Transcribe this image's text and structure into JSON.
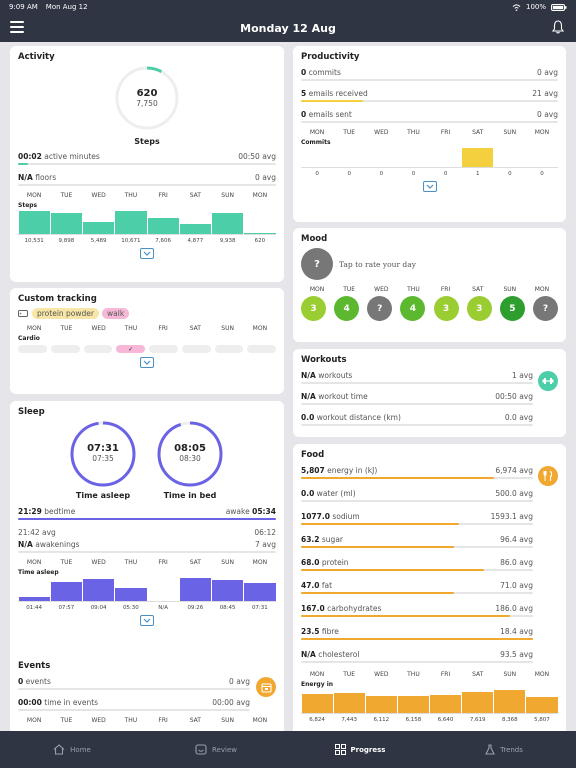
{
  "status": {
    "time": "9:09 AM",
    "date": "Mon Aug 12",
    "battery": "100%"
  },
  "header": {
    "title": "Monday 12 Aug"
  },
  "days": [
    "MON",
    "TUE",
    "WED",
    "THU",
    "FRI",
    "SAT",
    "SUN",
    "MON"
  ],
  "days7": [
    "MON",
    "TUE",
    "WED",
    "THU",
    "FRI",
    "SAT",
    "SUN",
    "MON"
  ],
  "activity": {
    "title": "Activity",
    "steps_value": "620",
    "steps_goal": "7,750",
    "steps_progress": 0.08,
    "steps_label": "Steps",
    "active_value": "00:02",
    "active_label": "active minutes",
    "active_avg": "00:50 avg",
    "floors_value": "N/A",
    "floors_label": "floors",
    "floors_avg": "0 avg",
    "chart_label": "Steps",
    "chart_color": "#4ccfa8",
    "values": [
      10531,
      9898,
      5489,
      10671,
      7606,
      4877,
      9938,
      620
    ],
    "value_labels": [
      "10,531",
      "9,898",
      "5,489",
      "10,671",
      "7,606",
      "4,877",
      "9,938",
      "620"
    ]
  },
  "custom": {
    "title": "Custom tracking",
    "tag1": "protein powder",
    "tag2": "walk",
    "chart_label": "Cardio",
    "cells": [
      0,
      0,
      0,
      1,
      0,
      0,
      0,
      0
    ]
  },
  "sleep": {
    "title": "Sleep",
    "asleep_value": "07:31",
    "asleep_avg": "07:35",
    "asleep_label": "Time asleep",
    "bed_value": "08:05",
    "bed_avg": "08:30",
    "bed_label": "Time in bed",
    "bedtime_value": "21:29",
    "bedtime_label": "bedtime",
    "awake_label": "awake",
    "awake_value": "05:34",
    "bedtime_avg": "21:42 avg",
    "awake_avg": "06:12",
    "awakenings_value": "N/A",
    "awakenings_label": "awakenings",
    "awakenings_avg": "7 avg",
    "chart_label": "Time asleep",
    "chart_color": "#6a63e6",
    "values": [
      104,
      477,
      544,
      330,
      0,
      566,
      525,
      451
    ],
    "value_labels": [
      "01:44",
      "07:57",
      "09:04",
      "05:30",
      "N/A",
      "09:26",
      "08:45",
      "07:31"
    ]
  },
  "events": {
    "title": "Events",
    "events_value": "0",
    "events_label": "events",
    "events_avg": "0 avg",
    "time_value": "00:00",
    "time_label": "time in events",
    "time_avg": "00:00 avg",
    "btn_color": "#f0a830"
  },
  "productivity": {
    "title": "Productivity",
    "commits_value": "0",
    "commits_label": "commits",
    "commits_avg": "0 avg",
    "emails_recv_value": "5",
    "emails_recv_label": "emails received",
    "emails_recv_avg": "21 avg",
    "emails_sent_value": "0",
    "emails_sent_label": "emails sent",
    "emails_sent_avg": "0 avg",
    "chart_label": "Commits",
    "chart_color": "#f4d03f",
    "values": [
      0,
      0,
      0,
      0,
      0,
      1,
      0,
      0
    ],
    "value_labels": [
      "0",
      "0",
      "0",
      "0",
      "0",
      "1",
      "0",
      "0"
    ]
  },
  "mood": {
    "title": "Mood",
    "prompt": "Tap to rate your day",
    "values": [
      "3",
      "4",
      "?",
      "4",
      "3",
      "3",
      "5",
      "?"
    ],
    "colors": [
      "#9acd32",
      "#5cb82e",
      "#777777",
      "#5cb82e",
      "#9acd32",
      "#9acd32",
      "#2e9e2e",
      "#777777"
    ]
  },
  "workouts": {
    "title": "Workouts",
    "w_value": "N/A",
    "w_label": "workouts",
    "w_avg": "1 avg",
    "t_value": "N/A",
    "t_label": "workout time",
    "t_avg": "00:50 avg",
    "d_value": "0.0",
    "d_label": "workout distance (km)",
    "d_avg": "0.0 avg",
    "btn_color": "#4ccfa8"
  },
  "food": {
    "title": "Food",
    "btn_color": "#f0a830",
    "rows": [
      {
        "value": "5,807",
        "label": "energy in (kJ)",
        "avg": "6,974 avg",
        "pct": 0.83
      },
      {
        "value": "0.0",
        "label": "water (ml)",
        "avg": "500.0 avg",
        "pct": 0
      },
      {
        "value": "1077.0",
        "label": "sodium",
        "avg": "1593.1 avg",
        "pct": 0.68
      },
      {
        "value": "63.2",
        "label": "sugar",
        "avg": "96.4 avg",
        "pct": 0.66
      },
      {
        "value": "68.0",
        "label": "protein",
        "avg": "86.0 avg",
        "pct": 0.79
      },
      {
        "value": "47.0",
        "label": "fat",
        "avg": "71.0 avg",
        "pct": 0.66
      },
      {
        "value": "167.0",
        "label": "carbohydrates",
        "avg": "186.0 avg",
        "pct": 0.9
      },
      {
        "value": "23.5",
        "label": "fibre",
        "avg": "18.4 avg",
        "pct": 1.0
      },
      {
        "value": "N/A",
        "label": "cholesterol",
        "avg": "93.5 avg",
        "pct": 0
      }
    ],
    "chart_label": "Energy in",
    "chart_color": "#f0a830",
    "values": [
      6824,
      7443,
      6112,
      6158,
      6640,
      7619,
      8368,
      5807
    ],
    "value_labels": [
      "6,824",
      "7,443",
      "6,112",
      "6,158",
      "6,640",
      "7,619",
      "8,368",
      "5,807"
    ]
  },
  "tabs": [
    {
      "label": "Home",
      "active": false
    },
    {
      "label": "Review",
      "active": false
    },
    {
      "label": "Progress",
      "active": true
    },
    {
      "label": "Trends",
      "active": false
    }
  ]
}
